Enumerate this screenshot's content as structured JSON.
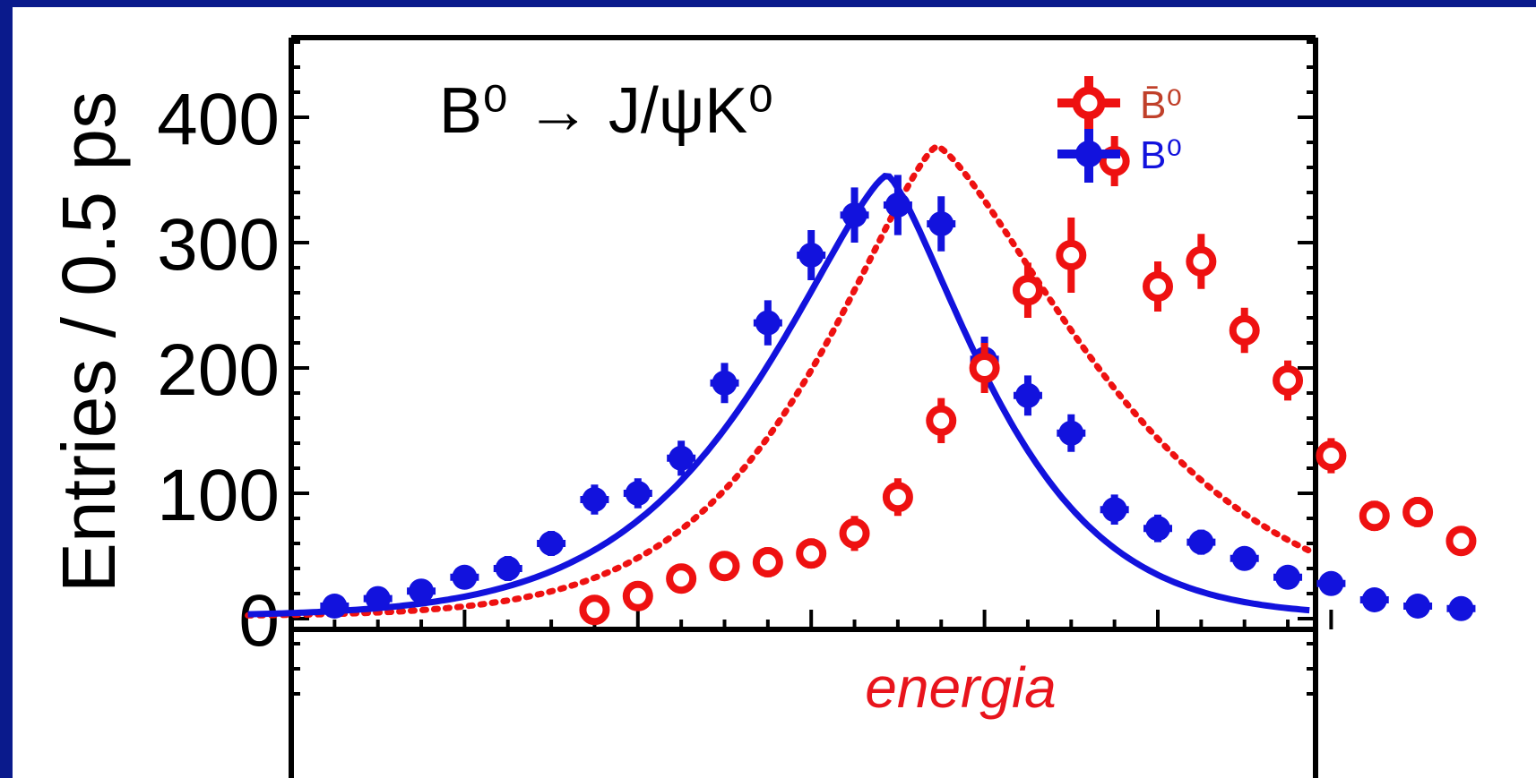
{
  "colors": {
    "slide_background": "#0a1a8c",
    "panel_background": "#ffffff",
    "bbar_series": "#ee1111",
    "b0_series": "#1212dd",
    "axis": "#000000",
    "annotation": "#e8141c"
  },
  "chart_data": {
    "type": "scatter",
    "title": "B⁰ → J/ψK⁰",
    "xlabel": "",
    "ylabel": "Entries / 0.5 ps",
    "ylim": [
      -70,
      470
    ],
    "y_ticks": [
      "0",
      "100",
      "200",
      "300",
      "400"
    ],
    "annotation": "energia",
    "grid": false,
    "legend_position": "top-right",
    "series": [
      {
        "name": "B̄⁰",
        "marker": "open-circle",
        "curve": "dotted",
        "color": "#ee1111",
        "x": [
          8,
          9,
          10,
          11,
          12,
          13,
          14,
          15,
          16,
          17,
          18,
          19,
          20,
          21,
          22,
          23,
          24,
          25,
          26,
          27,
          28
        ],
        "y": [
          7,
          18,
          32,
          42,
          45,
          52,
          68,
          97,
          158,
          200,
          262,
          290,
          365,
          265,
          285,
          230,
          190,
          130,
          82,
          85,
          62
        ],
        "yerr": [
          8,
          9,
          10,
          11,
          12,
          12,
          14,
          15,
          18,
          20,
          22,
          30,
          20,
          20,
          22,
          18,
          16,
          14,
          12,
          12,
          10
        ]
      },
      {
        "name": "B⁰",
        "marker": "filled-circle",
        "curve": "solid",
        "color": "#1212dd",
        "x": [
          2,
          3,
          4,
          5,
          6,
          7,
          8,
          9,
          10,
          11,
          12,
          13,
          14,
          15,
          16,
          17,
          18,
          19,
          20,
          21,
          22,
          23,
          24,
          25,
          26,
          27,
          28
        ],
        "y": [
          10,
          16,
          22,
          33,
          40,
          60,
          95,
          100,
          128,
          188,
          236,
          290,
          322,
          330,
          315,
          207,
          178,
          148,
          87,
          72,
          61,
          48,
          33,
          28,
          15,
          10,
          8
        ],
        "yerr": [
          8,
          8,
          8,
          9,
          10,
          10,
          12,
          12,
          14,
          16,
          18,
          20,
          22,
          24,
          22,
          18,
          16,
          15,
          12,
          11,
          10,
          9,
          8,
          8,
          7,
          6,
          6
        ]
      }
    ]
  }
}
